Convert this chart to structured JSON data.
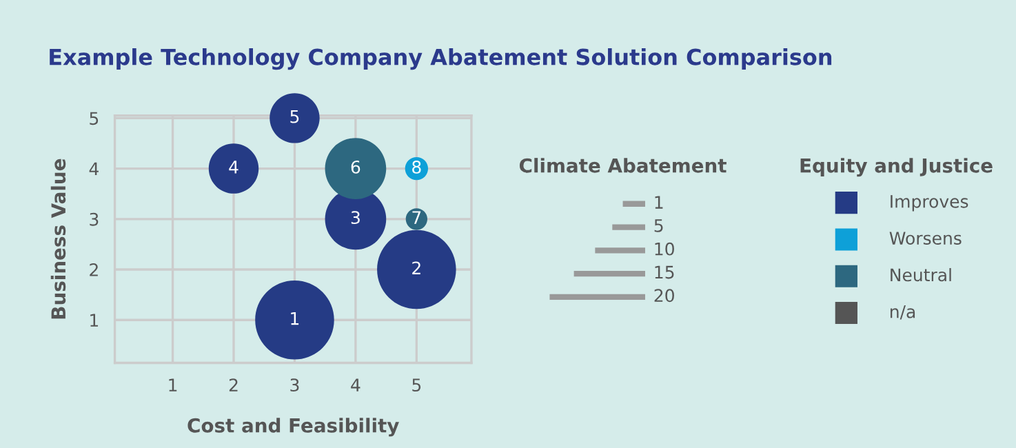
{
  "chart_data": {
    "type": "bubble",
    "title": "Example Technology Company Abatement Solution Comparison",
    "xlabel": "Cost and Feasibility",
    "ylabel": "Business Value",
    "xlim": [
      0.05,
      5.9
    ],
    "ylim": [
      0.15,
      5.05
    ],
    "xticks": [
      1,
      2,
      3,
      4,
      5
    ],
    "yticks": [
      1,
      2,
      3,
      4,
      5
    ],
    "grid": true,
    "legend": "right",
    "legend_title": "Equity and Justice",
    "annotations": [
      "Climate Abatement",
      "1",
      "5",
      "10",
      "15",
      "20",
      {
        "text": "1",
        "x": 3,
        "y": 1
      },
      {
        "text": "2",
        "x": 5,
        "y": 2
      },
      {
        "text": "3",
        "x": 4,
        "y": 3
      },
      {
        "text": "4",
        "x": 2,
        "y": 4
      },
      {
        "text": "5",
        "x": 3,
        "y": 5
      },
      {
        "text": "6",
        "x": 4,
        "y": 4
      },
      {
        "text": "7",
        "x": 5,
        "y": 3
      },
      {
        "text": "8",
        "x": 5,
        "y": 4
      }
    ],
    "series": [
      {
        "name": "Improves",
        "color": "#253b85",
        "x": [
          3,
          5,
          4,
          2,
          3
        ],
        "values": [
          1,
          2,
          3,
          4,
          5
        ],
        "sizes": [
          1,
          1,
          0.6,
          0.4,
          0.4
        ]
      },
      {
        "name": "Worsens",
        "color": "#0ea0d8",
        "x": [
          5
        ],
        "values": [
          4
        ],
        "sizes": [
          0.085
        ]
      },
      {
        "name": "Neutral",
        "color": "#2d6880",
        "x": [
          4,
          5
        ],
        "values": [
          4,
          3
        ],
        "sizes": [
          0.6,
          0.075
        ]
      },
      {
        "name": "n/a",
        "color": "#555555"
      }
    ]
  }
}
